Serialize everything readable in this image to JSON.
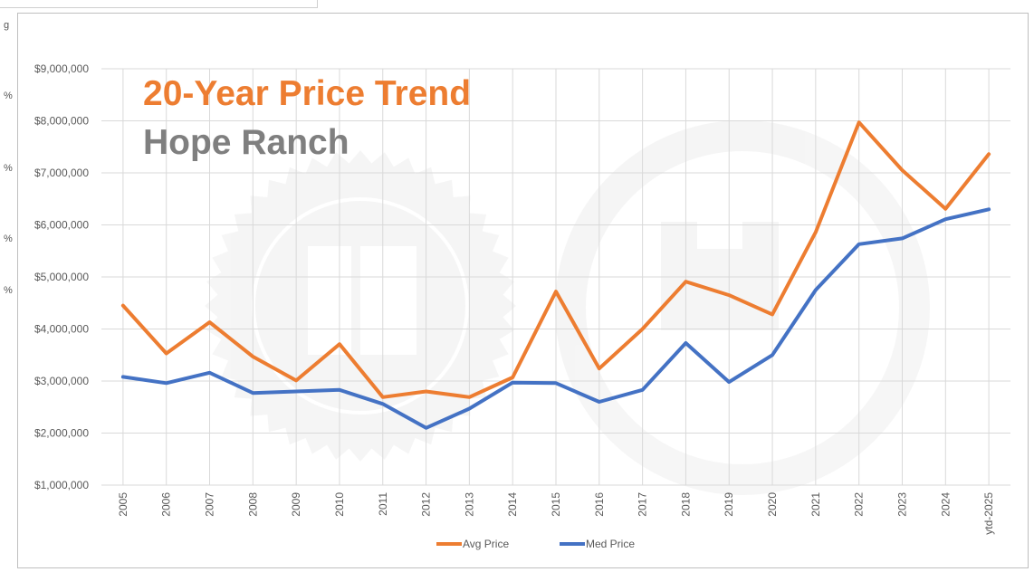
{
  "chart_data": {
    "type": "line",
    "title": "20-Year Price Trend",
    "subtitle": "Hope Ranch",
    "categories": [
      "2005",
      "2006",
      "2007",
      "2008",
      "2009",
      "2010",
      "2011",
      "2012",
      "2013",
      "2014",
      "2015",
      "2016",
      "2017",
      "2018",
      "2019",
      "2020",
      "2021",
      "2022",
      "2023",
      "2024",
      "ytd-2025"
    ],
    "series": [
      {
        "name": "Avg Price",
        "color": "#ed7d31",
        "values": [
          4450000,
          3530000,
          4130000,
          3470000,
          3010000,
          3710000,
          2690000,
          2800000,
          2690000,
          3070000,
          4720000,
          3240000,
          4000000,
          4910000,
          4650000,
          4280000,
          5860000,
          7970000,
          7050000,
          6310000,
          7360000
        ]
      },
      {
        "name": "Med Price",
        "color": "#4472c4",
        "values": [
          3080000,
          2960000,
          3160000,
          2770000,
          2800000,
          2830000,
          2560000,
          2100000,
          2470000,
          2970000,
          2960000,
          2600000,
          2830000,
          3730000,
          2980000,
          3500000,
          4750000,
          5630000,
          5740000,
          6110000,
          6300000
        ]
      }
    ],
    "yticks": [
      "$1,000,000",
      "$2,000,000",
      "$3,000,000",
      "$4,000,000",
      "$5,000,000",
      "$6,000,000",
      "$7,000,000",
      "$8,000,000",
      "$9,000,000"
    ],
    "ylim": [
      1000000,
      9000000
    ],
    "ytick_step": 1000000,
    "grid": true,
    "legend_position": "bottom",
    "title_color": "#ed7d31",
    "subtitle_color": "#7f7f7f"
  },
  "side_fragments": [
    "g",
    "%",
    "%",
    "%",
    "%"
  ]
}
